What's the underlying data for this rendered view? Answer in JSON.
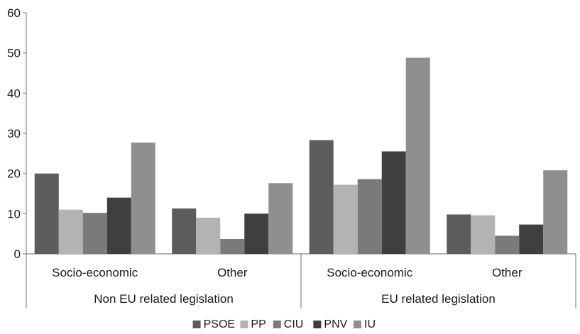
{
  "chart_data": {
    "type": "bar",
    "title": "",
    "xlabel": "",
    "ylabel": "",
    "ylim": [
      0,
      60
    ],
    "yticks": [
      0,
      10,
      20,
      30,
      40,
      50,
      60
    ],
    "grid": false,
    "legend_position": "bottom",
    "groups": [
      {
        "label": "Non EU related legislation",
        "categories": [
          "Socio-economic",
          "Other"
        ]
      },
      {
        "label": "EU related legislation",
        "categories": [
          "Socio-economic",
          "Other"
        ]
      }
    ],
    "categories": [
      "Socio-economic",
      "Other",
      "Socio-economic",
      "Other"
    ],
    "series": [
      {
        "name": "PSOE",
        "color": "#5c5c5c",
        "values": [
          20.0,
          11.3,
          28.3,
          9.8
        ]
      },
      {
        "name": "PP",
        "color": "#b3b3b3",
        "values": [
          11.0,
          9.0,
          17.2,
          9.6
        ]
      },
      {
        "name": "CIU",
        "color": "#7a7a7a",
        "values": [
          10.2,
          3.7,
          18.6,
          4.5
        ]
      },
      {
        "name": "PNV",
        "color": "#3f3f3f",
        "values": [
          14.0,
          10.0,
          25.5,
          7.3
        ]
      },
      {
        "name": "IU",
        "color": "#8f8f8f",
        "values": [
          27.7,
          17.6,
          48.8,
          20.8
        ]
      }
    ]
  }
}
